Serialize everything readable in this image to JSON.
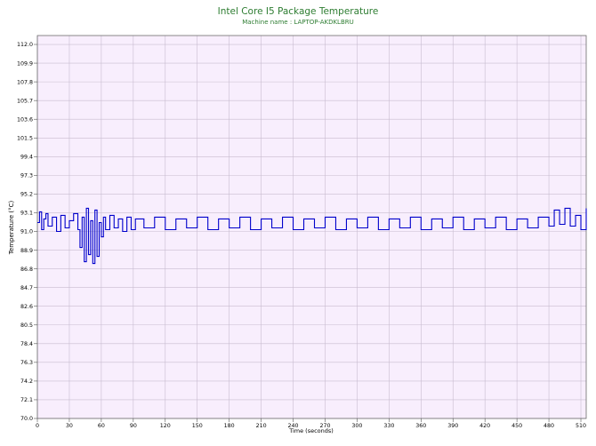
{
  "chart_data": {
    "type": "line",
    "title": "Intel Core I5 Package Temperature",
    "subtitle": "Machine name : LAPTOP-AKDKLBRU",
    "xlabel": "Time (seconds)",
    "ylabel": "Temperature (°C)",
    "xlim": [
      0,
      515
    ],
    "ylim": [
      70.0,
      113.0
    ],
    "x_ticks": [
      0,
      30,
      60,
      90,
      120,
      150,
      180,
      210,
      240,
      270,
      300,
      330,
      360,
      390,
      420,
      450,
      480,
      510
    ],
    "y_ticks": [
      "70.0",
      "72.1",
      "74.2",
      "76.3",
      "78.4",
      "80.5",
      "82.6",
      "84.7",
      "86.8",
      "88.9",
      "91.0",
      "93.1",
      "95.2",
      "97.3",
      "99.4",
      "101.5",
      "103.6",
      "105.7",
      "107.8",
      "109.9",
      "112.0"
    ],
    "grid": true,
    "legend": "none",
    "colors": {
      "line": "#0000cc",
      "title": "#2e7d32",
      "plot_bg": "#f8eefd",
      "grid": "#c8bcd0"
    },
    "series": [
      {
        "x": [
          0,
          2,
          4,
          6,
          8,
          10,
          14,
          18,
          22,
          26,
          30,
          34,
          38,
          40,
          42,
          44,
          46,
          48,
          50,
          52,
          54,
          56,
          58,
          60,
          62,
          64,
          68,
          72,
          76,
          80,
          84,
          88,
          92,
          100,
          110,
          120,
          130,
          140,
          150,
          160,
          170,
          180,
          190,
          200,
          210,
          220,
          230,
          240,
          250,
          260,
          270,
          280,
          290,
          300,
          310,
          320,
          330,
          340,
          350,
          360,
          370,
          380,
          390,
          400,
          410,
          420,
          430,
          440,
          450,
          460,
          470,
          480,
          485,
          490,
          495,
          500,
          505,
          510,
          515
        ],
        "y": [
          92.0,
          93.2,
          91.2,
          92.4,
          93.0,
          91.6,
          92.6,
          91.0,
          92.8,
          91.4,
          92.2,
          93.0,
          91.2,
          89.2,
          92.6,
          87.6,
          93.6,
          88.4,
          92.2,
          87.4,
          93.4,
          88.2,
          92.0,
          90.4,
          92.6,
          91.2,
          92.8,
          91.4,
          92.4,
          91.0,
          92.6,
          91.2,
          92.4,
          91.4,
          92.6,
          91.2,
          92.4,
          91.4,
          92.6,
          91.2,
          92.4,
          91.4,
          92.6,
          91.2,
          92.4,
          91.4,
          92.6,
          91.2,
          92.4,
          91.4,
          92.6,
          91.2,
          92.4,
          91.4,
          92.6,
          91.2,
          92.4,
          91.4,
          92.6,
          91.2,
          92.4,
          91.4,
          92.6,
          91.2,
          92.4,
          91.4,
          92.6,
          91.2,
          92.4,
          91.4,
          92.6,
          91.6,
          93.4,
          91.8,
          93.6,
          91.6,
          92.8,
          91.2,
          93.6
        ]
      }
    ]
  }
}
